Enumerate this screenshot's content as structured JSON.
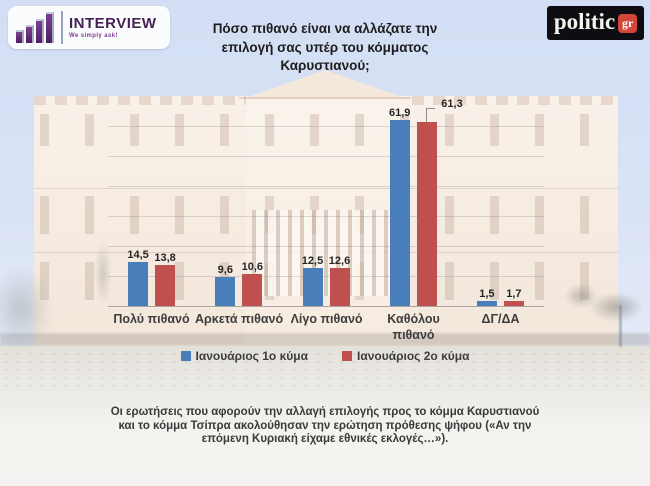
{
  "header": {
    "interview_logo": {
      "name": "INTERVIEW",
      "tagline": "We simply ask!"
    },
    "politic_logo": {
      "name": "politic",
      "suffix": "gr"
    }
  },
  "chart_data": {
    "type": "bar",
    "title": "Πόσο πιθανό είναι να αλλάζατε την επιλογή σας υπέρ του κόμματος Καρυστιανού;",
    "categories": [
      "Πολύ πιθανό",
      "Αρκετά πιθανό",
      "Λίγο πιθανό",
      "Καθόλου\nπιθανό",
      "ΔΓ/ΔΑ"
    ],
    "series": [
      {
        "name": "Ιανουάριος 1ο κύμα",
        "color": "#4A7EBB",
        "values": [
          14.5,
          9.6,
          12.5,
          61.9,
          1.5
        ]
      },
      {
        "name": "Ιανουάριος 2ο κύμα",
        "color": "#C0504D",
        "values": [
          13.8,
          10.6,
          12.6,
          61.3,
          1.7
        ]
      }
    ],
    "value_labels_shown": true,
    "decimal_separator": ",",
    "xlabel": "",
    "ylabel": "",
    "ylim": [
      0,
      65
    ],
    "gridlines": "faint horizontal every 10",
    "legend_position": "bottom"
  },
  "footnote": "Οι ερωτήσεις που αφορούν την αλλαγή επιλογής προς το κόμμα Καρυστιανού και το κόμμα Τσίπρα ακολούθησαν την ερώτηση πρόθεσης ψήφου («Αν την επόμενη Κυριακή είχαμε εθνικές εκλογές…»)."
}
